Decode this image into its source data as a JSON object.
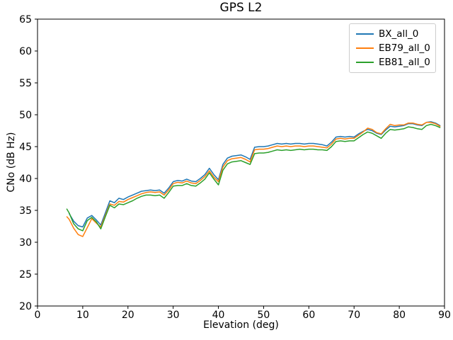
{
  "figure": {
    "title": "GPS L2",
    "xlabel": "Elevation (deg)",
    "ylabel": "CNo (dB Hz)"
  },
  "chart_data": {
    "type": "line",
    "title": "GPS L2",
    "xlabel": "Elevation (deg)",
    "ylabel": "CNo (dB Hz)",
    "xlim": [
      0,
      90
    ],
    "ylim": [
      20,
      65
    ],
    "xticks": [
      0,
      10,
      20,
      30,
      40,
      50,
      60,
      70,
      80,
      90
    ],
    "yticks": [
      20,
      25,
      30,
      35,
      40,
      45,
      50,
      55,
      60,
      65
    ],
    "grid": false,
    "legend_position": "upper right",
    "line_width": 1.5,
    "series": [
      {
        "name": "BX_all_0",
        "color": "#1f77b4",
        "x": [
          7,
          8,
          9,
          10,
          11,
          12,
          13,
          14,
          15,
          16,
          17,
          18,
          19,
          20,
          21,
          22,
          23,
          24,
          25,
          26,
          27,
          28,
          29,
          30,
          31,
          32,
          33,
          34,
          35,
          36,
          37,
          38,
          39,
          40,
          41,
          42,
          43,
          44,
          45,
          46,
          47,
          48,
          49,
          50,
          51,
          52,
          53,
          54,
          55,
          56,
          57,
          58,
          59,
          60,
          61,
          62,
          63,
          64,
          65,
          66,
          67,
          68,
          69,
          70,
          71,
          72,
          73,
          74,
          75,
          76,
          77,
          78,
          79,
          80,
          81,
          82,
          83,
          84,
          85,
          86,
          87,
          88,
          89
        ],
        "y": [
          34.5,
          33.3,
          32.6,
          32.4,
          33.8,
          34.2,
          33.5,
          32.7,
          34.6,
          36.5,
          36.2,
          36.9,
          36.7,
          37.1,
          37.4,
          37.7,
          38.0,
          38.1,
          38.2,
          38.1,
          38.2,
          37.7,
          38.5,
          39.5,
          39.7,
          39.6,
          39.9,
          39.6,
          39.5,
          40.0,
          40.6,
          41.6,
          40.6,
          39.8,
          42.2,
          43.2,
          43.5,
          43.6,
          43.7,
          43.4,
          43.0,
          44.9,
          45.0,
          45.0,
          45.1,
          45.3,
          45.5,
          45.4,
          45.5,
          45.4,
          45.5,
          45.5,
          45.4,
          45.5,
          45.5,
          45.4,
          45.3,
          45.1,
          45.7,
          46.5,
          46.6,
          46.5,
          46.6,
          46.5,
          47.0,
          47.4,
          47.7,
          47.5,
          47.1,
          46.9,
          47.6,
          48.2,
          48.1,
          48.2,
          48.3,
          48.6,
          48.6,
          48.4,
          48.3,
          48.8,
          48.9,
          48.7,
          48.3
        ]
      },
      {
        "name": "EB79_all_0",
        "color": "#ff7f0e",
        "x": [
          6.5,
          7,
          8,
          9,
          10,
          11,
          12,
          13,
          14,
          15,
          16,
          17,
          18,
          19,
          20,
          21,
          22,
          23,
          24,
          25,
          26,
          27,
          28,
          29,
          30,
          31,
          32,
          33,
          34,
          35,
          36,
          37,
          38,
          39,
          40,
          41,
          42,
          43,
          44,
          45,
          46,
          47,
          48,
          49,
          50,
          51,
          52,
          53,
          54,
          55,
          56,
          57,
          58,
          59,
          60,
          61,
          62,
          63,
          64,
          65,
          66,
          67,
          68,
          69,
          70,
          71,
          72,
          73,
          74,
          75,
          76,
          77,
          78,
          79,
          80,
          81,
          82,
          83,
          84,
          85,
          86,
          87,
          88,
          89
        ],
        "y": [
          34.0,
          33.6,
          32.2,
          31.2,
          30.9,
          32.3,
          33.7,
          33.0,
          32.4,
          34.2,
          36.0,
          35.8,
          36.4,
          36.3,
          36.7,
          37.0,
          37.3,
          37.6,
          37.8,
          37.9,
          37.8,
          37.9,
          37.4,
          38.2,
          39.2,
          39.4,
          39.3,
          39.6,
          39.3,
          39.2,
          39.7,
          40.3,
          41.2,
          40.2,
          39.5,
          41.8,
          42.8,
          43.1,
          43.2,
          43.3,
          43.0,
          42.6,
          44.5,
          44.6,
          44.6,
          44.7,
          44.9,
          45.1,
          45.0,
          45.1,
          45.0,
          45.1,
          45.1,
          45.0,
          45.1,
          45.1,
          45.0,
          44.9,
          44.8,
          45.4,
          46.2,
          46.3,
          46.2,
          46.3,
          46.3,
          46.8,
          47.3,
          47.9,
          47.7,
          47.2,
          47.0,
          47.8,
          48.5,
          48.3,
          48.4,
          48.4,
          48.7,
          48.7,
          48.5,
          48.4,
          48.8,
          48.8,
          48.6,
          48.2
        ]
      },
      {
        "name": "EB81_all_0",
        "color": "#2ca02c",
        "x": [
          6.5,
          7,
          8,
          9,
          10,
          11,
          12,
          13,
          14,
          15,
          16,
          17,
          18,
          19,
          20,
          21,
          22,
          23,
          24,
          25,
          26,
          27,
          28,
          29,
          30,
          31,
          32,
          33,
          34,
          35,
          36,
          37,
          38,
          39,
          40,
          41,
          42,
          43,
          44,
          45,
          46,
          47,
          48,
          49,
          50,
          51,
          52,
          53,
          54,
          55,
          56,
          57,
          58,
          59,
          60,
          61,
          62,
          63,
          64,
          65,
          66,
          67,
          68,
          69,
          70,
          71,
          72,
          73,
          74,
          75,
          76,
          77,
          78,
          79,
          80,
          81,
          82,
          83,
          84,
          85,
          86,
          87,
          88,
          89
        ],
        "y": [
          35.2,
          34.6,
          32.9,
          32.1,
          31.8,
          33.4,
          33.9,
          33.2,
          32.1,
          34.0,
          35.8,
          35.4,
          36.0,
          35.9,
          36.2,
          36.5,
          36.9,
          37.2,
          37.4,
          37.4,
          37.3,
          37.4,
          36.9,
          37.8,
          38.8,
          38.9,
          38.9,
          39.2,
          38.9,
          38.8,
          39.3,
          39.9,
          40.9,
          39.9,
          39.0,
          41.3,
          42.3,
          42.6,
          42.7,
          42.8,
          42.5,
          42.2,
          43.9,
          44.0,
          44.0,
          44.1,
          44.3,
          44.5,
          44.4,
          44.5,
          44.4,
          44.5,
          44.6,
          44.5,
          44.6,
          44.6,
          44.5,
          44.5,
          44.4,
          45.0,
          45.8,
          45.9,
          45.8,
          45.9,
          45.9,
          46.4,
          46.9,
          47.3,
          47.1,
          46.7,
          46.3,
          47.1,
          47.7,
          47.6,
          47.7,
          47.8,
          48.1,
          48.0,
          47.8,
          47.7,
          48.3,
          48.5,
          48.3,
          48.0
        ]
      }
    ]
  }
}
